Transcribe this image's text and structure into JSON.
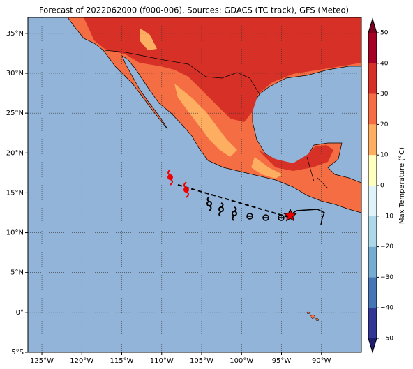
{
  "map": {
    "title": "Forecast of 2022062000 (f000-006), Sources: GDACS (TC track), GFS (Meteo)",
    "lon_range": [
      -126.75,
      -85
    ],
    "lat_range": [
      -5,
      37
    ],
    "lon_ticks": [
      {
        "value": -125,
        "label": "125°W"
      },
      {
        "value": -120,
        "label": "120°W"
      },
      {
        "value": -115,
        "label": "115°W"
      },
      {
        "value": -110,
        "label": "110°W"
      },
      {
        "value": -105,
        "label": "105°W"
      },
      {
        "value": -100,
        "label": "100°W"
      },
      {
        "value": -95,
        "label": "95°W"
      },
      {
        "value": -90,
        "label": "90°W"
      }
    ],
    "lat_ticks": [
      {
        "value": -5,
        "label": "5°S"
      },
      {
        "value": 0,
        "label": "0°"
      },
      {
        "value": 5,
        "label": "5°N"
      },
      {
        "value": 10,
        "label": "10°N"
      },
      {
        "value": 15,
        "label": "15°N"
      },
      {
        "value": 20,
        "label": "20°N"
      },
      {
        "value": 25,
        "label": "25°N"
      },
      {
        "value": 30,
        "label": "30°N"
      },
      {
        "value": 35,
        "label": "35°N"
      }
    ],
    "colorbar": {
      "label": "Max Temperature (°C)",
      "ticks": [
        {
          "value": -50,
          "label": "−50"
        },
        {
          "value": -40,
          "label": "−40"
        },
        {
          "value": -30,
          "label": "−30"
        },
        {
          "value": -20,
          "label": "−20"
        },
        {
          "value": -10,
          "label": "−10"
        },
        0,
        10,
        20,
        30,
        40,
        50
      ],
      "colors": [
        "#313695",
        "#4575b4",
        "#74add1",
        "#abd9e9",
        "#e0f3f8",
        "#ffffbf",
        "#fdae61",
        "#f46d43",
        "#d73027",
        "#a50026"
      ],
      "extend_colors": [
        "#1c1c70",
        "#7a0020"
      ]
    }
  }
}
